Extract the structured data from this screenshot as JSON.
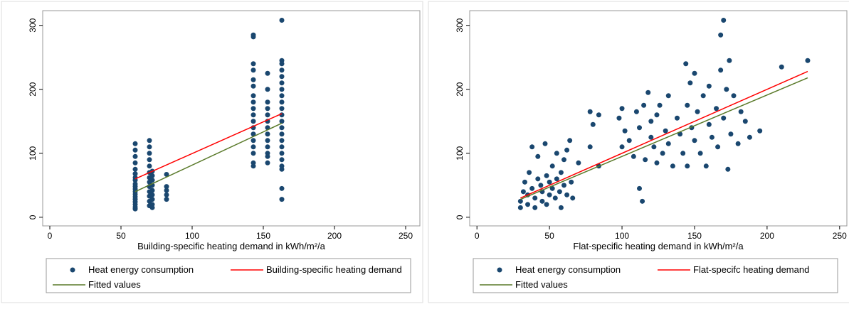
{
  "chart_data": [
    {
      "type": "scatter",
      "x_label": "Building-specific heating demand in kWh/m²/a",
      "xlim": [
        -5,
        260
      ],
      "ylim": [
        -13.5,
        323
      ],
      "xticks": [
        0,
        50,
        100,
        150,
        200,
        250
      ],
      "yticks": [
        0,
        100,
        200,
        300
      ],
      "series": [
        {
          "name": "Heat energy consumption",
          "color": "#1a476f",
          "type": "scatter",
          "x": [
            60,
            60,
            60,
            60,
            60,
            60,
            60,
            60,
            60,
            60,
            60,
            60,
            60,
            60,
            60,
            60,
            60,
            60,
            60,
            70,
            70,
            70,
            70,
            70,
            70,
            70,
            70,
            70,
            70,
            70,
            70,
            70,
            72,
            72,
            72,
            72,
            72,
            72,
            72,
            72,
            72,
            82,
            82,
            82,
            82,
            82,
            143,
            143,
            143,
            143,
            143,
            143,
            143,
            143,
            143,
            143,
            143,
            143,
            143,
            143,
            143,
            143,
            143,
            143,
            153,
            153,
            153,
            153,
            153,
            153,
            153,
            153,
            153,
            153,
            153,
            153,
            153,
            163,
            163,
            163,
            163,
            163,
            163,
            163,
            163,
            163,
            163,
            163,
            163,
            163,
            163,
            163,
            163,
            163,
            163,
            163,
            163,
            163,
            163
          ],
          "values": [
            115,
            105,
            95,
            85,
            75,
            68,
            62,
            58,
            52,
            48,
            44,
            40,
            36,
            32,
            28,
            24,
            20,
            16,
            13,
            120,
            110,
            100,
            90,
            80,
            70,
            62,
            55,
            48,
            40,
            33,
            25,
            18,
            72,
            65,
            58,
            50,
            42,
            35,
            28,
            20,
            15,
            67,
            48,
            42,
            35,
            28,
            285,
            282,
            240,
            230,
            215,
            205,
            190,
            180,
            170,
            160,
            150,
            140,
            130,
            120,
            110,
            100,
            85,
            80,
            225,
            200,
            180,
            170,
            160,
            150,
            140,
            130,
            120,
            110,
            100,
            95,
            85,
            308,
            245,
            240,
            230,
            220,
            210,
            200,
            190,
            180,
            170,
            160,
            150,
            140,
            130,
            120,
            110,
            100,
            90,
            80,
            75,
            45,
            28
          ]
        },
        {
          "name": "Building-specific heating demand",
          "color": "#ff0000",
          "type": "line",
          "x": [
            60,
            163
          ],
          "values": [
            60,
            162
          ]
        },
        {
          "name": "Fitted values",
          "color": "#5a7a2a",
          "type": "line",
          "x": [
            60,
            163
          ],
          "values": [
            40,
            147
          ]
        }
      ]
    },
    {
      "type": "scatter",
      "x_label": "Flat-specific heating demand in kWh/m²/a",
      "xlim": [
        -5,
        255
      ],
      "ylim": [
        -13.5,
        323
      ],
      "xticks": [
        0,
        50,
        100,
        150,
        200,
        250
      ],
      "yticks": [
        0,
        100,
        200,
        300
      ],
      "series": [
        {
          "name": "Heat energy consumption",
          "color": "#1a476f",
          "type": "scatter",
          "x": [
            30,
            30,
            32,
            33,
            35,
            35,
            36,
            38,
            38,
            40,
            40,
            42,
            42,
            44,
            45,
            45,
            47,
            48,
            48,
            50,
            50,
            52,
            52,
            54,
            55,
            55,
            57,
            58,
            58,
            60,
            60,
            62,
            62,
            64,
            65,
            66,
            70,
            78,
            78,
            80,
            84,
            84,
            98,
            100,
            100,
            102,
            105,
            108,
            110,
            112,
            112,
            114,
            115,
            116,
            118,
            120,
            120,
            122,
            124,
            124,
            126,
            128,
            130,
            132,
            132,
            135,
            138,
            140,
            142,
            144,
            145,
            145,
            147,
            148,
            150,
            150,
            152,
            154,
            156,
            158,
            160,
            160,
            162,
            165,
            166,
            168,
            168,
            170,
            170,
            172,
            173,
            174,
            175,
            177,
            180,
            182,
            185,
            188,
            195,
            210,
            228
          ],
          "values": [
            15,
            25,
            40,
            55,
            20,
            35,
            70,
            45,
            110,
            15,
            30,
            60,
            95,
            50,
            25,
            40,
            115,
            65,
            20,
            35,
            55,
            45,
            80,
            30,
            60,
            100,
            40,
            70,
            15,
            50,
            90,
            35,
            105,
            120,
            55,
            30,
            85,
            165,
            110,
            145,
            160,
            80,
            155,
            170,
            110,
            135,
            120,
            95,
            165,
            140,
            45,
            25,
            175,
            90,
            195,
            150,
            125,
            110,
            160,
            85,
            175,
            100,
            135,
            115,
            190,
            80,
            155,
            130,
            100,
            240,
            175,
            80,
            210,
            140,
            225,
            120,
            165,
            100,
            190,
            80,
            205,
            145,
            125,
            170,
            110,
            285,
            230,
            308,
            155,
            200,
            75,
            245,
            130,
            190,
            115,
            165,
            150,
            125,
            135,
            235,
            245
          ]
        },
        {
          "name": "Flat-specifc heating demand",
          "color": "#ff0000",
          "type": "line",
          "x": [
            30,
            228
          ],
          "values": [
            30,
            228
          ]
        },
        {
          "name": "Fitted values",
          "color": "#5a7a2a",
          "type": "line",
          "x": [
            30,
            228
          ],
          "values": [
            28,
            218
          ]
        }
      ]
    }
  ]
}
